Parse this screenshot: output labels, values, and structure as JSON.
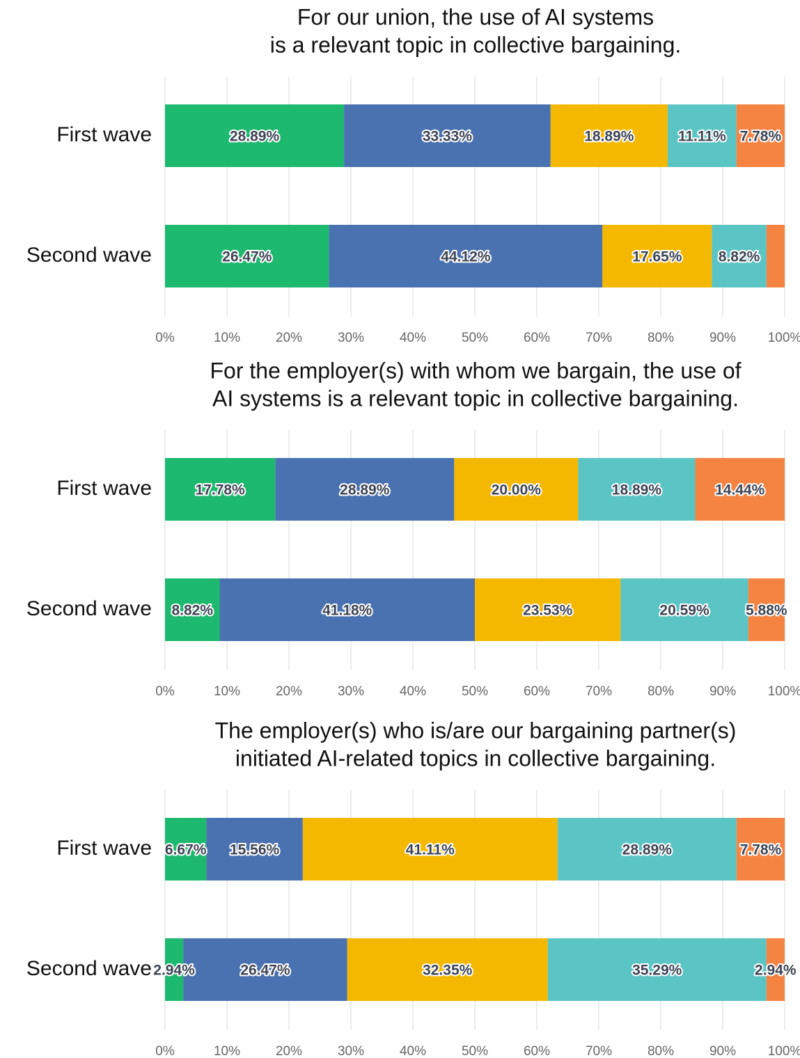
{
  "chart_data": [
    {
      "type": "stacked_barh",
      "title": [
        "For our union, the use of AI systems",
        "is a relevant topic in collective bargaining."
      ],
      "categories": [
        "First wave",
        "Second wave"
      ],
      "series": [
        {
          "color": "#1db96e",
          "values": [
            28.89,
            26.47
          ],
          "value_labels": [
            "28.89%",
            "26.47%"
          ]
        },
        {
          "color": "#4a72b0",
          "values": [
            33.33,
            44.12
          ],
          "value_labels": [
            "33.33%",
            "44.12%"
          ]
        },
        {
          "color": "#f5b800",
          "values": [
            18.89,
            17.65
          ],
          "value_labels": [
            "18.89%",
            "17.65%"
          ]
        },
        {
          "color": "#5bc4c4",
          "values": [
            11.11,
            8.82
          ],
          "value_labels": [
            "11.11%",
            "8.82%"
          ]
        },
        {
          "color": "#f58442",
          "values": [
            7.78,
            2.94
          ],
          "value_labels": [
            "7.78%",
            null
          ]
        }
      ],
      "xlim": [
        0,
        100
      ],
      "xticks": [
        {
          "value": 0,
          "label": "0%"
        },
        {
          "value": 10,
          "label": "10%"
        },
        {
          "value": 20,
          "label": "20%"
        },
        {
          "value": 30,
          "label": "30%"
        },
        {
          "value": 40,
          "label": "40%"
        },
        {
          "value": 50,
          "label": "50%"
        },
        {
          "value": 60,
          "label": "60%"
        },
        {
          "value": 70,
          "label": "70%"
        },
        {
          "value": 80,
          "label": "80%"
        },
        {
          "value": 90,
          "label": "90%"
        },
        {
          "value": 100,
          "label": "100%"
        }
      ],
      "grid": true
    },
    {
      "type": "stacked_barh",
      "title": [
        "For the employer(s) with whom we bargain, the use of",
        "AI systems is a relevant topic in collective bargaining."
      ],
      "categories": [
        "First wave",
        "Second wave"
      ],
      "series": [
        {
          "color": "#1db96e",
          "values": [
            17.78,
            8.82
          ],
          "value_labels": [
            "17.78%",
            "8.82%"
          ]
        },
        {
          "color": "#4a72b0",
          "values": [
            28.89,
            41.18
          ],
          "value_labels": [
            "28.89%",
            "41.18%"
          ]
        },
        {
          "color": "#f5b800",
          "values": [
            20.0,
            23.53
          ],
          "value_labels": [
            "20.00%",
            "23.53%"
          ]
        },
        {
          "color": "#5bc4c4",
          "values": [
            18.89,
            20.59
          ],
          "value_labels": [
            "18.89%",
            "20.59%"
          ]
        },
        {
          "color": "#f58442",
          "values": [
            14.44,
            5.88
          ],
          "value_labels": [
            "14.44%",
            "5.88%"
          ]
        }
      ],
      "xlim": [
        0,
        100
      ],
      "xticks": [
        {
          "value": 0,
          "label": "0%"
        },
        {
          "value": 10,
          "label": "10%"
        },
        {
          "value": 20,
          "label": "20%"
        },
        {
          "value": 30,
          "label": "30%"
        },
        {
          "value": 40,
          "label": "40%"
        },
        {
          "value": 50,
          "label": "50%"
        },
        {
          "value": 60,
          "label": "60%"
        },
        {
          "value": 70,
          "label": "70%"
        },
        {
          "value": 80,
          "label": "80%"
        },
        {
          "value": 90,
          "label": "90%"
        },
        {
          "value": 100,
          "label": "100%"
        }
      ],
      "grid": true
    },
    {
      "type": "stacked_barh",
      "title": [
        "The employer(s) who is/are our bargaining partner(s)",
        "initiated AI-related topics in collective bargaining."
      ],
      "categories": [
        "First wave",
        "Second wave"
      ],
      "series": [
        {
          "color": "#1db96e",
          "values": [
            6.67,
            2.94
          ],
          "value_labels": [
            "6.67%",
            "2.94%"
          ]
        },
        {
          "color": "#4a72b0",
          "values": [
            15.56,
            26.47
          ],
          "value_labels": [
            "15.56%",
            "26.47%"
          ]
        },
        {
          "color": "#f5b800",
          "values": [
            41.11,
            32.35
          ],
          "value_labels": [
            "41.11%",
            "32.35%"
          ]
        },
        {
          "color": "#5bc4c4",
          "values": [
            28.89,
            35.29
          ],
          "value_labels": [
            "28.89%",
            "35.29%"
          ]
        },
        {
          "color": "#f58442",
          "values": [
            7.78,
            2.94
          ],
          "value_labels": [
            "7.78%",
            "2.94%"
          ]
        }
      ],
      "xlim": [
        0,
        100
      ],
      "xticks": [
        {
          "value": 0,
          "label": "0%"
        },
        {
          "value": 10,
          "label": "10%"
        },
        {
          "value": 20,
          "label": "20%"
        },
        {
          "value": 30,
          "label": "30%"
        },
        {
          "value": 40,
          "label": "40%"
        },
        {
          "value": 50,
          "label": "50%"
        },
        {
          "value": 60,
          "label": "60%"
        },
        {
          "value": 70,
          "label": "70%"
        },
        {
          "value": 80,
          "label": "80%"
        },
        {
          "value": 90,
          "label": "90%"
        },
        {
          "value": 100,
          "label": "100%"
        }
      ],
      "grid": true
    }
  ]
}
